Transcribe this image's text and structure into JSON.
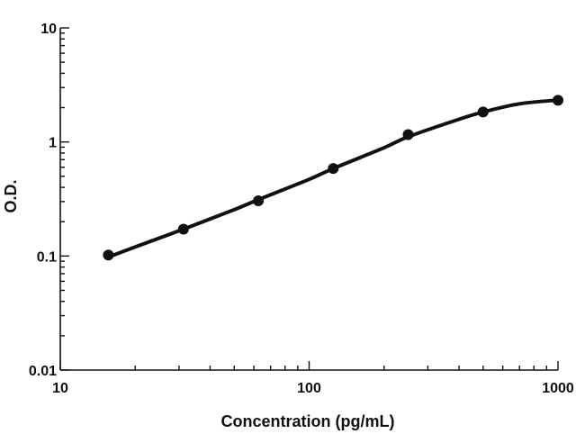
{
  "chart_data": {
    "type": "scatter",
    "title": "",
    "xlabel": "Concentration (pg/mL)",
    "ylabel": "O.D.",
    "xscale": "log",
    "yscale": "log",
    "xlim": [
      10,
      1000
    ],
    "ylim": [
      0.01,
      10
    ],
    "x_major_ticks": [
      10,
      100,
      1000
    ],
    "x_tick_labels": [
      "10",
      "100",
      "1000"
    ],
    "y_major_ticks": [
      0.01,
      0.1,
      1,
      10
    ],
    "y_tick_labels": [
      "0.01",
      "0.1",
      "1",
      "10"
    ],
    "grid": false,
    "legend": "none",
    "series": [
      {
        "x": [
          15.6,
          31.25,
          62.5,
          125,
          250,
          500,
          1000
        ],
        "y": [
          0.102,
          0.172,
          0.305,
          0.585,
          1.16,
          1.83,
          2.32
        ],
        "marker": "filled-circle"
      }
    ],
    "fitted_curve": {
      "x": [
        15.6,
        20,
        31.25,
        50,
        62.5,
        100,
        125,
        200,
        250,
        400,
        500,
        700,
        1000
      ],
      "y": [
        0.098,
        0.12,
        0.172,
        0.255,
        0.312,
        0.47,
        0.585,
        0.89,
        1.11,
        1.58,
        1.83,
        2.16,
        2.33
      ],
      "style": "smooth-line"
    },
    "colors": {
      "marker": "#111111",
      "line": "#111111",
      "axis": "#111111"
    }
  }
}
